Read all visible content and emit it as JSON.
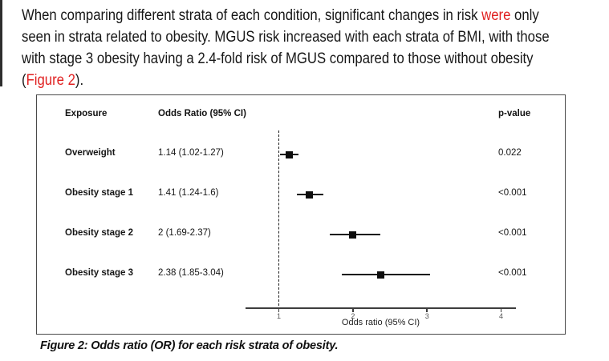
{
  "colors": {
    "text": "#171717",
    "highlight_red": "#e02020",
    "figure_border": "#4a4a4a",
    "axis": "#3d3d3d",
    "marker_black": "#0d0d0d"
  },
  "paragraph": {
    "line1_pre": "When comparing different strata of each condition, significant changes in risk ",
    "line1_red": "were",
    "line1_post": " only",
    "line2": "seen in strata related to obesity. MGUS risk increased with each strata of BMI, with those",
    "line3": "with stage 3 obesity having a 2.4-fold risk of MGUS compared to those without obesity",
    "line4_pre": "(",
    "line4_red": "Figure 2",
    "line4_post": ")."
  },
  "figure": {
    "header": {
      "exposure": "Exposure",
      "odds_ratio": "Odds Ratio (95% CI)",
      "p_value": "p-value"
    },
    "caption": "Figure 2: Odds ratio (OR) for each risk strata of obesity."
  },
  "chart_data": {
    "type": "scatter",
    "variant": "forest-plot",
    "title": "",
    "xlabel": "Odds ratio (95% CI)",
    "xlim": [
      0.55,
      4.2
    ],
    "x_ticks": [
      1,
      2,
      3,
      4
    ],
    "reference_line": 1,
    "grid": false,
    "rows": [
      {
        "label": "Overweight",
        "or_text": "1.14 (1.02-1.27)",
        "or": 1.14,
        "ci_low": 1.02,
        "ci_high": 1.27,
        "p": "0.022"
      },
      {
        "label": "Obesity stage 1",
        "or_text": "1.41 (1.24-1.6)",
        "or": 1.41,
        "ci_low": 1.24,
        "ci_high": 1.6,
        "p": "<0.001"
      },
      {
        "label": "Obesity stage 2",
        "or_text": "2 (1.69-2.37)",
        "or": 2.0,
        "ci_low": 1.69,
        "ci_high": 2.37,
        "p": "<0.001"
      },
      {
        "label": "Obesity stage 3",
        "or_text": "2.38 (1.85-3.04)",
        "or": 2.38,
        "ci_low": 1.85,
        "ci_high": 3.04,
        "p": "<0.001"
      }
    ]
  }
}
